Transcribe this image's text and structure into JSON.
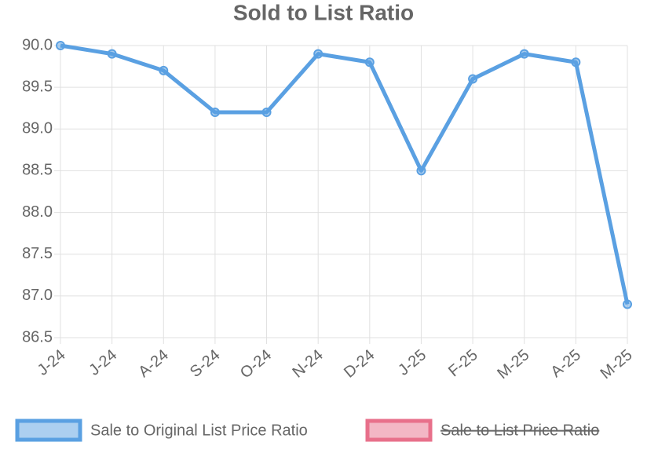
{
  "chart_data": {
    "type": "line",
    "title": "Sold to List Ratio",
    "categories": [
      "J-24",
      "J-24",
      "A-24",
      "S-24",
      "O-24",
      "N-24",
      "D-24",
      "J-25",
      "F-25",
      "M-25",
      "A-25",
      "M-25"
    ],
    "series": [
      {
        "name": "Sale to Original List Price Ratio",
        "color": "#5aa0e2",
        "values": [
          90.0,
          89.9,
          89.7,
          89.2,
          89.2,
          89.9,
          89.8,
          88.5,
          89.6,
          89.9,
          89.8,
          86.9
        ]
      },
      {
        "name": "Sale to List Price Ratio",
        "color": "#e8708b",
        "hidden": true
      }
    ],
    "ylim": [
      86.5,
      90.0
    ],
    "yticks": [
      {
        "value": 86.5,
        "label": "86.5"
      },
      {
        "value": 87,
        "label": "87.0"
      },
      {
        "value": 87.5,
        "label": "87.5"
      },
      {
        "value": 88,
        "label": "88.0"
      },
      {
        "value": 88.5,
        "label": "88.5"
      },
      {
        "value": 89,
        "label": "89.0"
      },
      {
        "value": 89.5,
        "label": "89.5"
      },
      {
        "value": 90,
        "label": "90.0"
      }
    ],
    "grid": true,
    "legend": "bottom"
  }
}
